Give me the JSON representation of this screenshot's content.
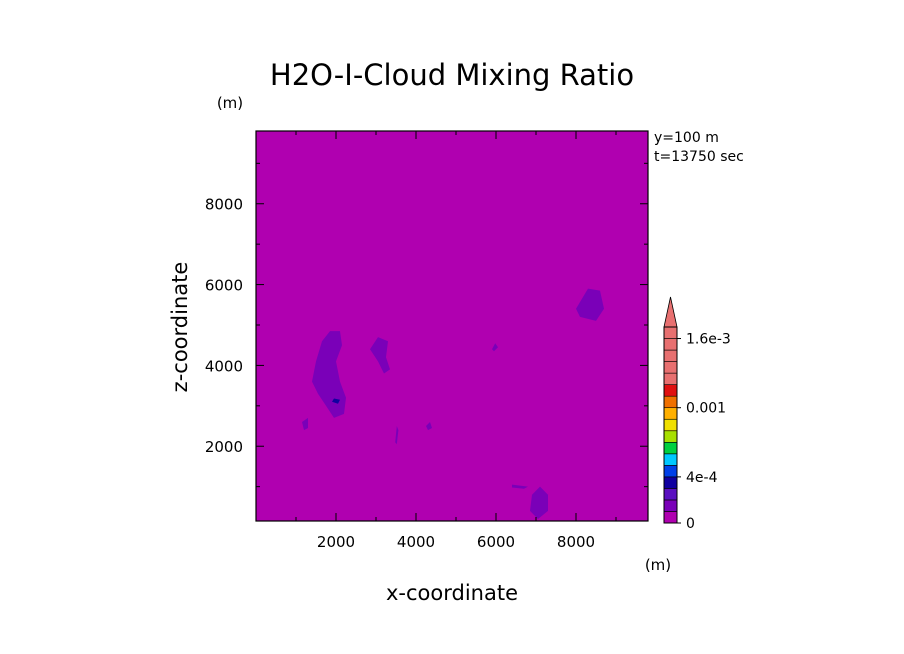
{
  "chart_data": {
    "type": "heatmap",
    "title": "H2O-I-Cloud Mixing Ratio",
    "xlabel": "x-coordinate",
    "ylabel": "z-coordinate",
    "x_unit": "(m)",
    "y_unit": "(m)",
    "annotation": [
      "y=100 m",
      "t=13750 sec"
    ],
    "xlim": [
      0,
      9800
    ],
    "ylim": [
      150,
      9800
    ],
    "xticks": [
      2000,
      4000,
      6000,
      8000
    ],
    "yticks": [
      2000,
      4000,
      6000,
      8000
    ],
    "xtick_labels": [
      "2000",
      "4000",
      "6000",
      "8000"
    ],
    "ytick_labels": [
      "2000",
      "4000",
      "6000",
      "8000"
    ],
    "background_level_color": "#b000b0",
    "colorbar": {
      "levels": [
        0,
        0.0001,
        0.0002,
        0.0003,
        0.0004,
        0.0005,
        0.0006,
        0.0007,
        0.0008,
        0.0009,
        0.001,
        0.0011,
        0.0012,
        0.0013,
        0.0014,
        0.0015,
        0.0016,
        0.0017
      ],
      "colors": [
        "#b000b0",
        "#7a00b8",
        "#5a10c0",
        "#1000a0",
        "#0040e8",
        "#00c8ff",
        "#00d040",
        "#a8e000",
        "#f0e000",
        "#ffb000",
        "#f07000",
        "#e01010",
        "#e87070"
      ],
      "tick_values": [
        0,
        0.0004,
        0.001,
        0.0016
      ],
      "tick_labels": [
        "0",
        "4e-4",
        "0.001",
        "1.6e-3"
      ],
      "extend": "max"
    },
    "features": [
      {
        "level": 1,
        "color": "#7a00b8",
        "outline": [
          [
            1400,
            3600
          ],
          [
            1500,
            4100
          ],
          [
            1650,
            4600
          ],
          [
            1850,
            4850
          ],
          [
            2100,
            4850
          ],
          [
            2150,
            4500
          ],
          [
            2000,
            4100
          ],
          [
            2100,
            3600
          ],
          [
            2250,
            3200
          ],
          [
            2200,
            2800
          ],
          [
            1950,
            2700
          ],
          [
            1750,
            3000
          ],
          [
            1550,
            3300
          ]
        ]
      },
      {
        "level": 3,
        "color": "#1000a0",
        "outline": [
          [
            1900,
            3100
          ],
          [
            2050,
            3050
          ],
          [
            2100,
            3150
          ],
          [
            1950,
            3180
          ]
        ]
      },
      {
        "level": 1,
        "color": "#7a00b8",
        "outline": [
          [
            2850,
            4400
          ],
          [
            3050,
            4700
          ],
          [
            3300,
            4600
          ],
          [
            3250,
            4200
          ],
          [
            3350,
            3900
          ],
          [
            3200,
            3800
          ],
          [
            3050,
            4100
          ]
        ]
      },
      {
        "level": 1,
        "color": "#7a00b8",
        "outline": [
          [
            8000,
            5400
          ],
          [
            8300,
            5900
          ],
          [
            8600,
            5850
          ],
          [
            8700,
            5400
          ],
          [
            8500,
            5100
          ],
          [
            8100,
            5200
          ]
        ]
      },
      {
        "level": 1,
        "color": "#7a00b8",
        "outline": [
          [
            6900,
            800
          ],
          [
            7100,
            1000
          ],
          [
            7300,
            800
          ],
          [
            7300,
            400
          ],
          [
            7050,
            200
          ],
          [
            6850,
            400
          ]
        ]
      },
      {
        "level": 1,
        "color": "#7a00b8",
        "outline": [
          [
            1150,
            2600
          ],
          [
            1300,
            2700
          ],
          [
            1300,
            2450
          ],
          [
            1200,
            2400
          ]
        ]
      },
      {
        "level": 1,
        "color": "#7a00b8",
        "outline": [
          [
            4250,
            2500
          ],
          [
            4350,
            2600
          ],
          [
            4400,
            2450
          ],
          [
            4300,
            2400
          ]
        ]
      },
      {
        "level": 1,
        "color": "#7a00b8",
        "outline": [
          [
            5900,
            4400
          ],
          [
            5980,
            4550
          ],
          [
            6050,
            4450
          ],
          [
            5950,
            4350
          ]
        ]
      },
      {
        "level": 1,
        "color": "#7a00b8",
        "outline": [
          [
            6400,
            1050
          ],
          [
            6800,
            1000
          ],
          [
            6700,
            950
          ],
          [
            6400,
            980
          ]
        ]
      },
      {
        "level": 1,
        "color": "#7a00b8",
        "outline": [
          [
            3480,
            2100
          ],
          [
            3520,
            2500
          ],
          [
            3560,
            2400
          ],
          [
            3520,
            2050
          ]
        ]
      }
    ]
  }
}
